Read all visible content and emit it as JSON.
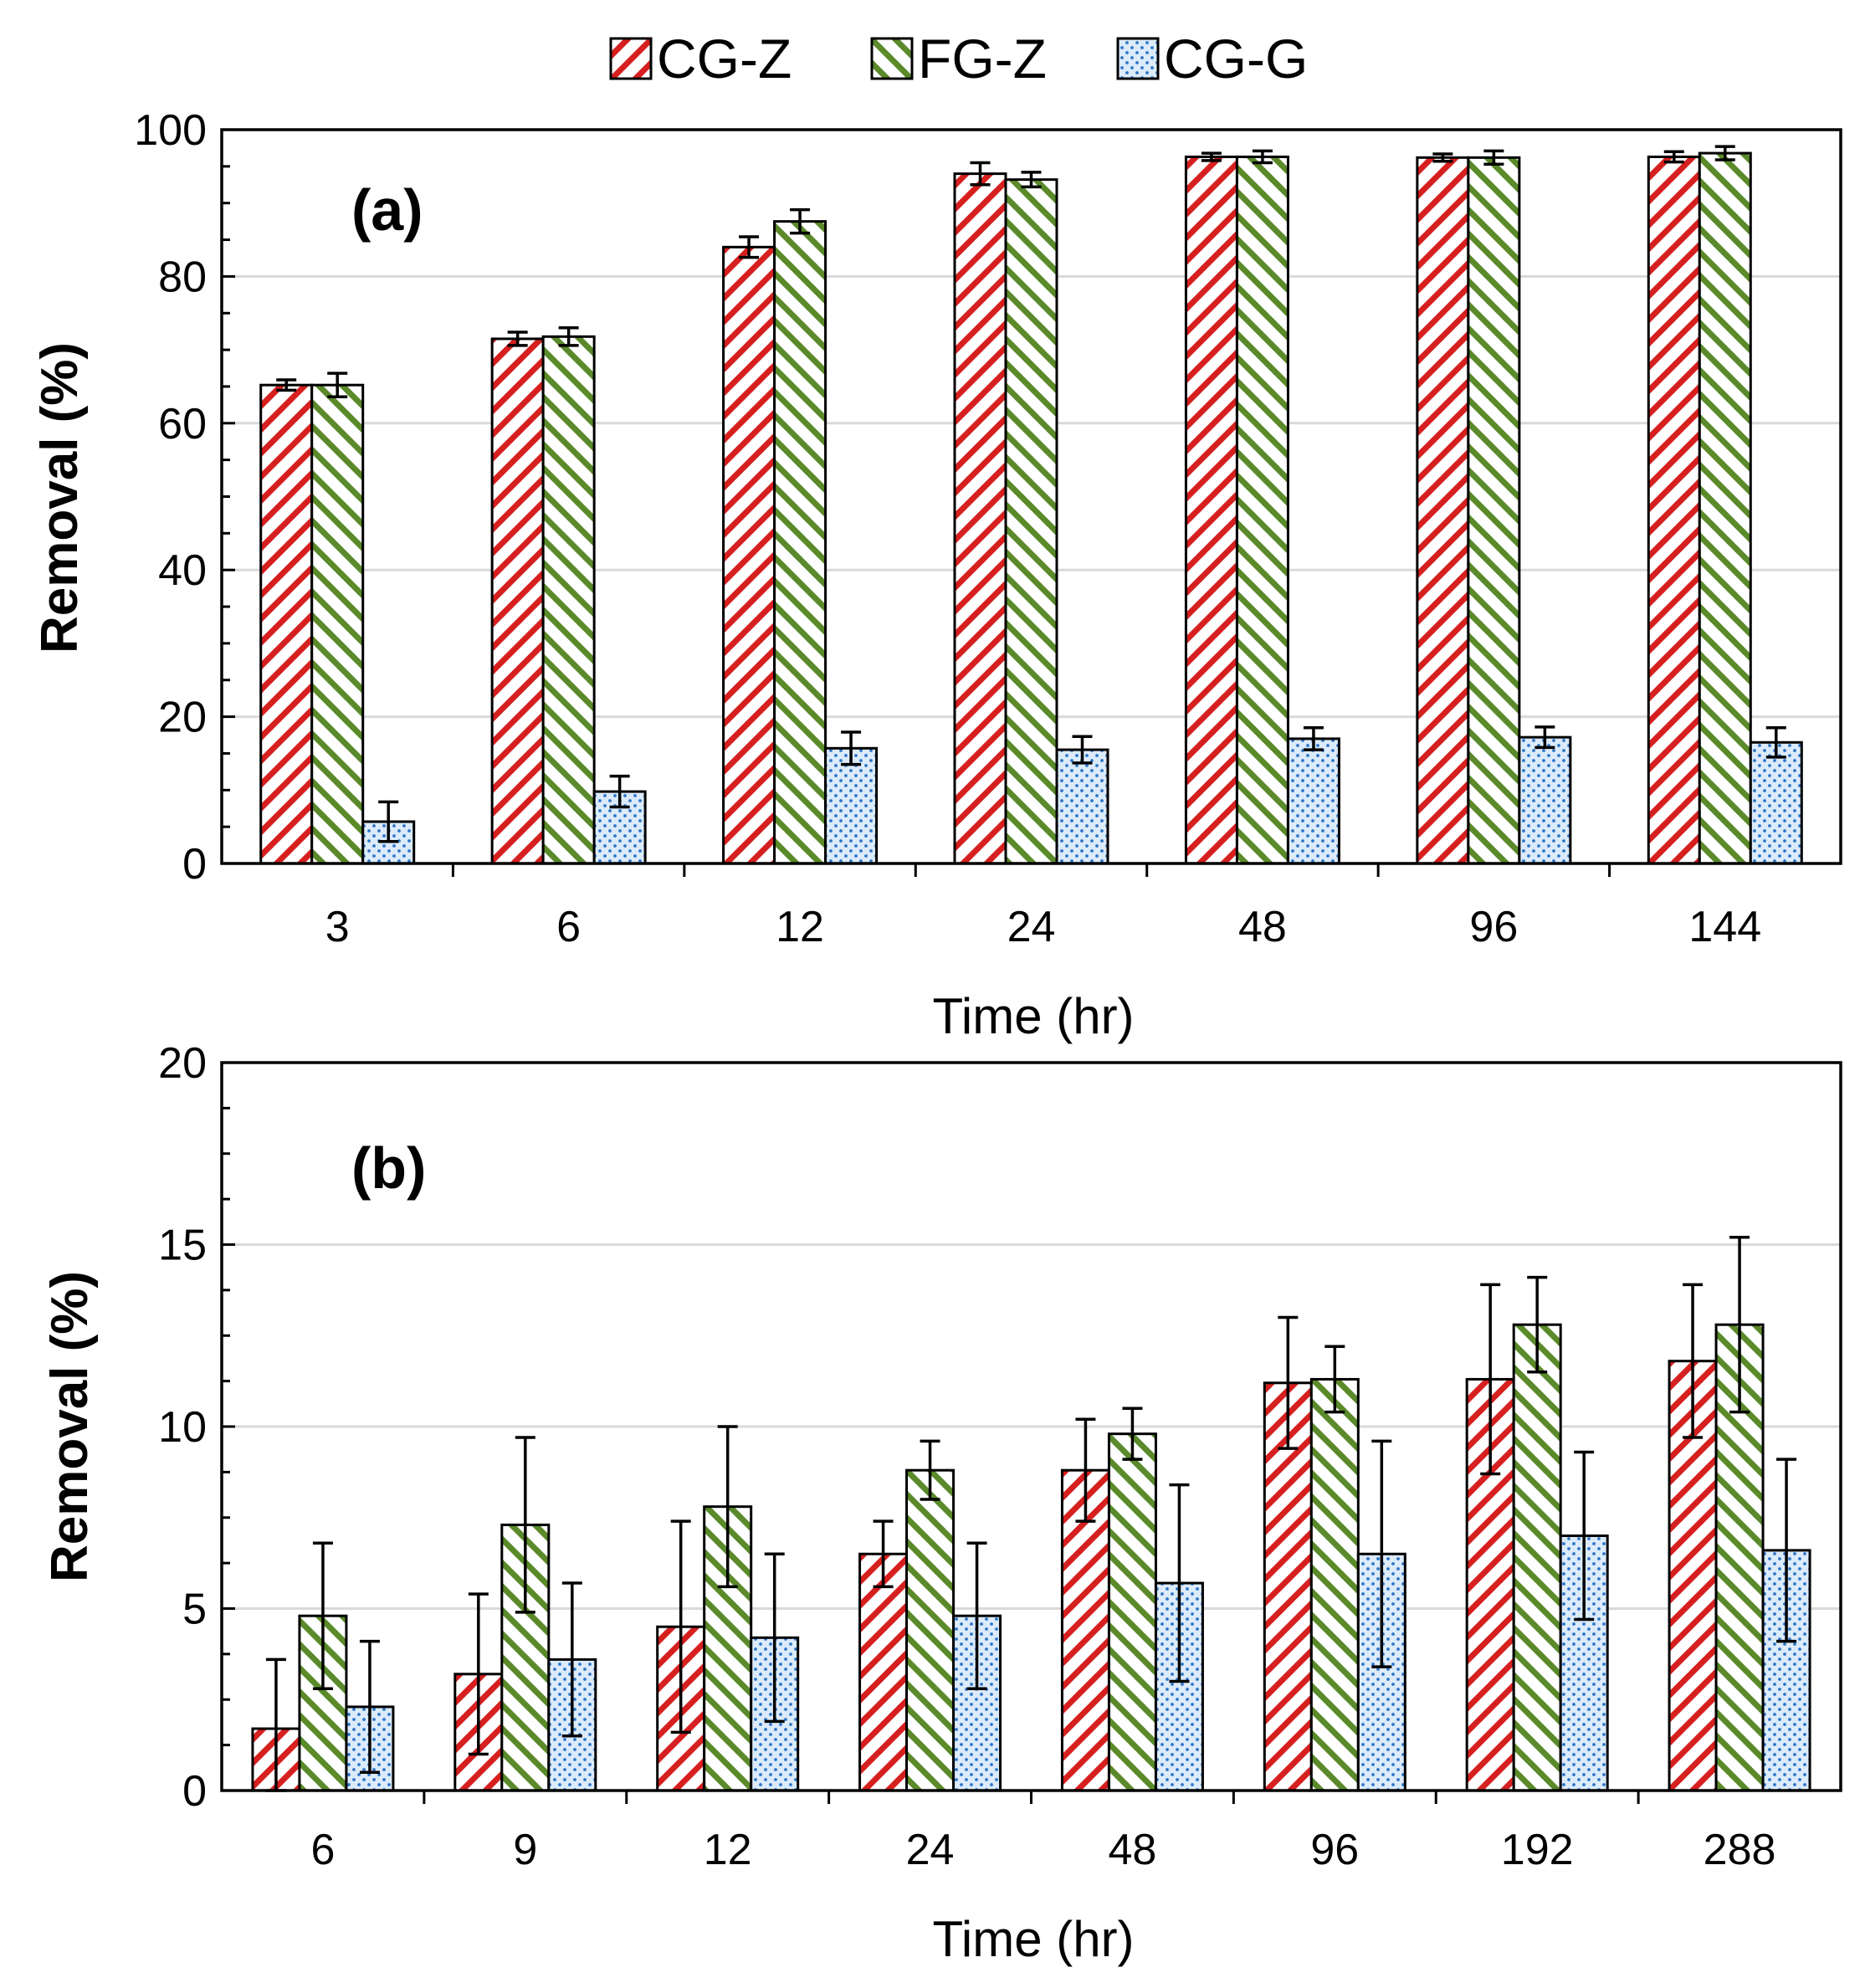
{
  "legend": [
    {
      "name": "CG-Z",
      "pattern": "red-hatch"
    },
    {
      "name": "FG-Z",
      "pattern": "green-hatch"
    },
    {
      "name": "CG-G",
      "pattern": "blue-dots"
    }
  ],
  "colors": {
    "cgz": "#d62020",
    "fgz": "#5a8a2a",
    "cgg": "#2e75c8",
    "grid": "#d9d9d9"
  },
  "chart_data": [
    {
      "type": "bar",
      "panel_label": "(a)",
      "categories": [
        "3",
        "6",
        "12",
        "24",
        "48",
        "96",
        "144"
      ],
      "xlabel": "Time (hr)",
      "ylabel": "Removal (%)",
      "ylim": [
        0,
        100
      ],
      "yticks": [
        "0",
        "20",
        "40",
        "60",
        "80",
        "100"
      ],
      "grid": true,
      "series": [
        {
          "name": "CG-Z",
          "values": [
            65.2,
            71.5,
            84.0,
            94.0,
            96.3,
            96.2,
            96.3
          ],
          "errors": [
            0.7,
            0.9,
            1.4,
            1.5,
            0.5,
            0.5,
            0.7
          ]
        },
        {
          "name": "FG-Z",
          "values": [
            65.2,
            71.8,
            87.5,
            93.2,
            96.3,
            96.2,
            96.8
          ],
          "errors": [
            1.6,
            1.2,
            1.6,
            1.0,
            0.8,
            0.9,
            0.9
          ]
        },
        {
          "name": "CG-G",
          "values": [
            5.7,
            9.8,
            15.7,
            15.5,
            17.0,
            17.2,
            16.5
          ],
          "errors": [
            2.7,
            2.1,
            2.2,
            1.8,
            1.5,
            1.4,
            2.0
          ]
        }
      ]
    },
    {
      "type": "bar",
      "panel_label": "(b)",
      "categories": [
        "6",
        "9",
        "12",
        "24",
        "48",
        "96",
        "192",
        "288"
      ],
      "xlabel": "Time (hr)",
      "ylabel": "Removal (%)",
      "ylim": [
        0,
        20
      ],
      "yticks": [
        "0",
        "5",
        "10",
        "15",
        "20"
      ],
      "grid": true,
      "series": [
        {
          "name": "CG-Z",
          "values": [
            1.7,
            3.2,
            4.5,
            6.5,
            8.8,
            11.2,
            11.3,
            11.8
          ],
          "errors": [
            1.9,
            2.2,
            2.9,
            0.9,
            1.4,
            1.8,
            2.6,
            2.1
          ]
        },
        {
          "name": "FG-Z",
          "values": [
            4.8,
            7.3,
            7.8,
            8.8,
            9.8,
            11.3,
            12.8,
            12.8
          ],
          "errors": [
            2.0,
            2.4,
            2.2,
            0.8,
            0.7,
            0.9,
            1.3,
            2.4
          ]
        },
        {
          "name": "CG-G",
          "values": [
            2.3,
            3.6,
            4.2,
            4.8,
            5.7,
            6.5,
            7.0,
            6.6
          ],
          "errors": [
            1.8,
            2.1,
            2.3,
            2.0,
            2.7,
            3.1,
            2.3,
            2.5
          ]
        }
      ]
    }
  ]
}
